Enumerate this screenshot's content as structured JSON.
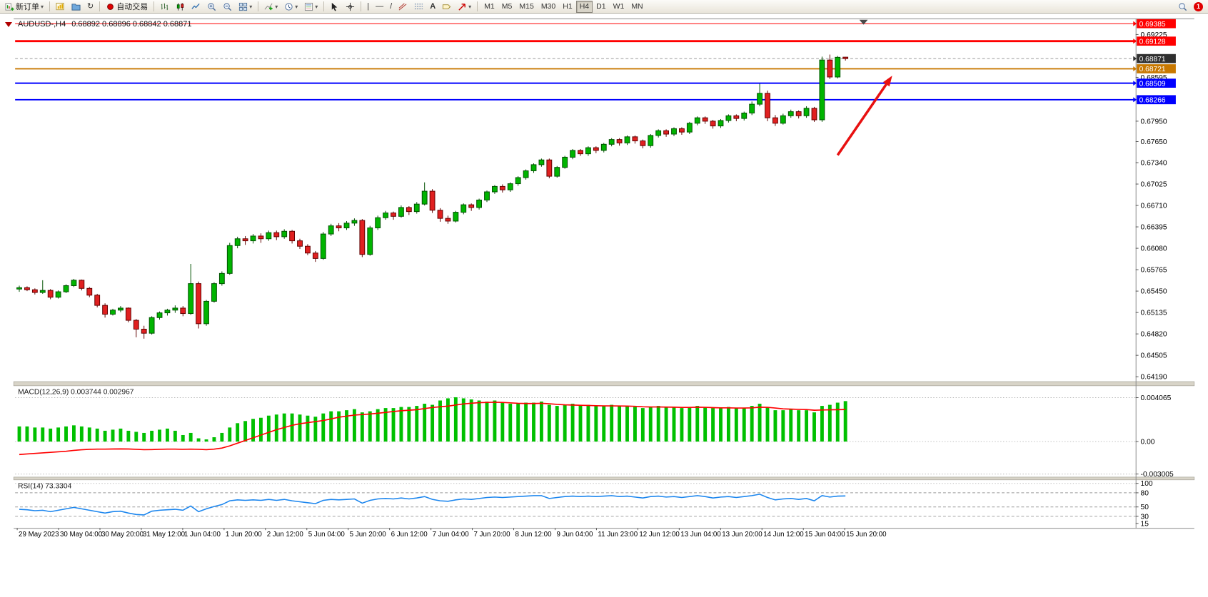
{
  "toolbar": {
    "new_order_label": "新订单",
    "autotrading_label": "自动交易",
    "timeframes": [
      "M1",
      "M5",
      "M15",
      "M30",
      "H1",
      "H4",
      "D1",
      "W1",
      "MN"
    ],
    "active_timeframe": "H4",
    "notification_count": "1"
  },
  "chart_header": {
    "symbol_tf": "AUDUSD-,H4",
    "ohlc": "0.68892 0.68896 0.68842 0.68871"
  },
  "colors": {
    "bull": "#00B400",
    "bull_border": "#005000",
    "bear": "#E02020",
    "bear_border": "#600000",
    "macd_hist": "#00C000",
    "macd_signal": "#FF0000",
    "rsi_line": "#1C86EE",
    "level_red": "#FF0000",
    "level_orange": "#C87800",
    "level_blue": "#0000FF",
    "current_price_badge": "#2F2F2F",
    "annotation": "#E81010"
  },
  "chart_data": [
    {
      "type": "candlestick",
      "symbol": "AUDUSD",
      "period": "H4",
      "ylim": [
        0.6419,
        0.69385
      ],
      "y_ticks": [
        "0.69225",
        "0.68595",
        "0.67950",
        "0.67650",
        "0.67340",
        "0.67025",
        "0.66710",
        "0.66395",
        "0.66080",
        "0.65765",
        "0.65450",
        "0.65135",
        "0.64820",
        "0.64505",
        "0.64190"
      ],
      "x_labels": [
        "29 May 2023",
        "30 May 04:00",
        "30 May 20:00",
        "31 May 12:00",
        "1 Jun 04:00",
        "1 Jun 20:00",
        "2 Jun 12:00",
        "5 Jun 04:00",
        "5 Jun 20:00",
        "6 Jun 12:00",
        "7 Jun 04:00",
        "7 Jun 20:00",
        "8 Jun 12:00",
        "9 Jun 04:00",
        "11 Jun 23:00",
        "12 Jun 12:00",
        "13 Jun 04:00",
        "13 Jun 20:00",
        "14 Jun 12:00",
        "15 Jun 04:00",
        "15 Jun 20:00"
      ],
      "levels": [
        {
          "price": 0.69385,
          "label": "0.69385",
          "color": "#FF0000",
          "width": 1
        },
        {
          "price": 0.69128,
          "label": "0.69128",
          "color": "#FF0000",
          "width": 3
        },
        {
          "price": 0.68721,
          "label": "0.68721",
          "color": "#C87800",
          "width": 2
        },
        {
          "price": 0.68509,
          "label": "0.68509",
          "color": "#0000FF",
          "width": 2
        },
        {
          "price": 0.68266,
          "label": "0.68266",
          "color": "#0000FF",
          "width": 2
        }
      ],
      "current_price": 0.68871,
      "current_price_label": "0.68871",
      "arrow": {
        "from_bar": 105,
        "from_price": 0.6745,
        "to_bar": 112,
        "to_price": 0.6862
      },
      "candles": [
        [
          0.6548,
          0.6553,
          0.6544,
          0.655
        ],
        [
          0.655,
          0.6552,
          0.6545,
          0.6547
        ],
        [
          0.6547,
          0.6549,
          0.654,
          0.6543
        ],
        [
          0.6543,
          0.6561,
          0.6541,
          0.6546
        ],
        [
          0.6546,
          0.6548,
          0.6533,
          0.6536
        ],
        [
          0.6536,
          0.6546,
          0.6534,
          0.6544
        ],
        [
          0.6544,
          0.6555,
          0.6542,
          0.6553
        ],
        [
          0.6553,
          0.6563,
          0.6551,
          0.6561
        ],
        [
          0.6561,
          0.6562,
          0.6546,
          0.6549
        ],
        [
          0.6549,
          0.6551,
          0.6536,
          0.6539
        ],
        [
          0.6539,
          0.6541,
          0.6521,
          0.6524
        ],
        [
          0.6524,
          0.6527,
          0.6506,
          0.6511
        ],
        [
          0.6511,
          0.6519,
          0.6509,
          0.6517
        ],
        [
          0.6517,
          0.6523,
          0.6514,
          0.652
        ],
        [
          0.652,
          0.6521,
          0.6499,
          0.6502
        ],
        [
          0.6502,
          0.6504,
          0.6477,
          0.6489
        ],
        [
          0.6489,
          0.6494,
          0.6475,
          0.6483
        ],
        [
          0.6483,
          0.6508,
          0.6481,
          0.6506
        ],
        [
          0.6506,
          0.6515,
          0.6503,
          0.6513
        ],
        [
          0.6513,
          0.6519,
          0.6509,
          0.6517
        ],
        [
          0.6517,
          0.6524,
          0.6513,
          0.652
        ],
        [
          0.652,
          0.6523,
          0.6508,
          0.6512
        ],
        [
          0.6512,
          0.6585,
          0.651,
          0.6556
        ],
        [
          0.6556,
          0.6559,
          0.649,
          0.6497
        ],
        [
          0.6497,
          0.6532,
          0.6494,
          0.653
        ],
        [
          0.653,
          0.6558,
          0.6528,
          0.6556
        ],
        [
          0.6556,
          0.6574,
          0.6553,
          0.6571
        ],
        [
          0.6571,
          0.6616,
          0.6569,
          0.6612
        ],
        [
          0.6612,
          0.6625,
          0.6608,
          0.6622
        ],
        [
          0.6622,
          0.6626,
          0.6613,
          0.6619
        ],
        [
          0.6619,
          0.6629,
          0.6615,
          0.6626
        ],
        [
          0.6626,
          0.663,
          0.6616,
          0.6622
        ],
        [
          0.6622,
          0.6634,
          0.6619,
          0.6631
        ],
        [
          0.6631,
          0.6634,
          0.662,
          0.6625
        ],
        [
          0.6625,
          0.6636,
          0.6622,
          0.6633
        ],
        [
          0.6633,
          0.6635,
          0.6615,
          0.6619
        ],
        [
          0.6619,
          0.6622,
          0.6607,
          0.6611
        ],
        [
          0.6611,
          0.6614,
          0.6598,
          0.6601
        ],
        [
          0.6601,
          0.6604,
          0.6588,
          0.6593
        ],
        [
          0.6593,
          0.6632,
          0.6591,
          0.6629
        ],
        [
          0.6629,
          0.6644,
          0.6626,
          0.6641
        ],
        [
          0.6641,
          0.6645,
          0.6633,
          0.6638
        ],
        [
          0.6638,
          0.6648,
          0.6635,
          0.6645
        ],
        [
          0.6645,
          0.6652,
          0.6641,
          0.6649
        ],
        [
          0.6649,
          0.6651,
          0.6595,
          0.6599
        ],
        [
          0.6599,
          0.6641,
          0.6597,
          0.6638
        ],
        [
          0.6638,
          0.6656,
          0.6635,
          0.6653
        ],
        [
          0.6653,
          0.6663,
          0.665,
          0.666
        ],
        [
          0.666,
          0.6662,
          0.665,
          0.6655
        ],
        [
          0.6655,
          0.6671,
          0.6653,
          0.6668
        ],
        [
          0.6668,
          0.667,
          0.6657,
          0.6662
        ],
        [
          0.6662,
          0.6676,
          0.6659,
          0.6673
        ],
        [
          0.6673,
          0.6705,
          0.6671,
          0.6692
        ],
        [
          0.6692,
          0.6695,
          0.666,
          0.6664
        ],
        [
          0.6664,
          0.6667,
          0.6647,
          0.6652
        ],
        [
          0.6652,
          0.6656,
          0.6644,
          0.6648
        ],
        [
          0.6648,
          0.6663,
          0.6646,
          0.6661
        ],
        [
          0.6661,
          0.6674,
          0.6658,
          0.6672
        ],
        [
          0.6672,
          0.6674,
          0.6663,
          0.6668
        ],
        [
          0.6668,
          0.6681,
          0.6665,
          0.6679
        ],
        [
          0.6679,
          0.6693,
          0.6676,
          0.6691
        ],
        [
          0.6691,
          0.6701,
          0.6688,
          0.6699
        ],
        [
          0.6699,
          0.6702,
          0.669,
          0.6694
        ],
        [
          0.6694,
          0.6705,
          0.6691,
          0.6703
        ],
        [
          0.6703,
          0.6714,
          0.67,
          0.6712
        ],
        [
          0.6712,
          0.6724,
          0.6709,
          0.6722
        ],
        [
          0.6722,
          0.6733,
          0.6719,
          0.6731
        ],
        [
          0.6731,
          0.674,
          0.6728,
          0.6738
        ],
        [
          0.6738,
          0.674,
          0.6711,
          0.6714
        ],
        [
          0.6714,
          0.6729,
          0.6712,
          0.6727
        ],
        [
          0.6727,
          0.6744,
          0.6725,
          0.6742
        ],
        [
          0.6742,
          0.6754,
          0.6739,
          0.6752
        ],
        [
          0.6752,
          0.6754,
          0.6744,
          0.6747
        ],
        [
          0.6747,
          0.6758,
          0.6744,
          0.6756
        ],
        [
          0.6756,
          0.6758,
          0.6748,
          0.6752
        ],
        [
          0.6752,
          0.6763,
          0.6749,
          0.6761
        ],
        [
          0.6761,
          0.677,
          0.6758,
          0.6768
        ],
        [
          0.6768,
          0.677,
          0.6759,
          0.6763
        ],
        [
          0.6763,
          0.6774,
          0.676,
          0.6772
        ],
        [
          0.6772,
          0.6774,
          0.6762,
          0.6766
        ],
        [
          0.6766,
          0.6768,
          0.6755,
          0.6759
        ],
        [
          0.6759,
          0.6776,
          0.6756,
          0.6774
        ],
        [
          0.6774,
          0.6783,
          0.6771,
          0.6781
        ],
        [
          0.6781,
          0.6783,
          0.6772,
          0.6776
        ],
        [
          0.6776,
          0.6786,
          0.6773,
          0.6784
        ],
        [
          0.6784,
          0.6786,
          0.6775,
          0.6779
        ],
        [
          0.6779,
          0.6794,
          0.6776,
          0.6792
        ],
        [
          0.6792,
          0.6802,
          0.6789,
          0.68
        ],
        [
          0.68,
          0.6802,
          0.6791,
          0.6795
        ],
        [
          0.6795,
          0.6797,
          0.6784,
          0.6788
        ],
        [
          0.6788,
          0.6798,
          0.6785,
          0.6796
        ],
        [
          0.6796,
          0.6805,
          0.6793,
          0.6803
        ],
        [
          0.6803,
          0.6805,
          0.6795,
          0.6799
        ],
        [
          0.6799,
          0.6809,
          0.6796,
          0.6807
        ],
        [
          0.6807,
          0.6824,
          0.6804,
          0.682
        ],
        [
          0.682,
          0.685,
          0.6817,
          0.6836
        ],
        [
          0.6836,
          0.684,
          0.6795,
          0.68
        ],
        [
          0.68,
          0.6804,
          0.6788,
          0.6792
        ],
        [
          0.6792,
          0.6806,
          0.679,
          0.6803
        ],
        [
          0.6803,
          0.6812,
          0.68,
          0.6809
        ],
        [
          0.6809,
          0.6811,
          0.6799,
          0.6803
        ],
        [
          0.6803,
          0.6817,
          0.68,
          0.6814
        ],
        [
          0.6814,
          0.6816,
          0.6794,
          0.6797
        ],
        [
          0.6797,
          0.689,
          0.6794,
          0.6885
        ],
        [
          0.6885,
          0.6893,
          0.6857,
          0.686
        ],
        [
          0.686,
          0.6891,
          0.6858,
          0.6889
        ],
        [
          0.68892,
          0.68896,
          0.68842,
          0.68871
        ]
      ]
    },
    {
      "type": "bar",
      "name": "MACD",
      "label": "MACD(12,26,9) 0.003744 0.002967",
      "current_values": [
        0.003744,
        0.002967
      ],
      "y_ticks": [
        "0.004065",
        "0.00",
        "-0.003005"
      ],
      "histogram": [
        0.0014,
        0.0014,
        0.0013,
        0.0013,
        0.0012,
        0.0013,
        0.0014,
        0.0015,
        0.0014,
        0.0013,
        0.0012,
        0.001,
        0.0011,
        0.0012,
        0.001,
        0.0009,
        0.0008,
        0.001,
        0.0011,
        0.0012,
        0.001,
        0.0006,
        0.0008,
        0.0003,
        0.0002,
        0.0004,
        0.0008,
        0.0013,
        0.0017,
        0.0019,
        0.0021,
        0.0022,
        0.0024,
        0.0025,
        0.0026,
        0.0026,
        0.0025,
        0.0024,
        0.0023,
        0.0026,
        0.0028,
        0.0028,
        0.0029,
        0.003,
        0.0027,
        0.0028,
        0.003,
        0.0031,
        0.0031,
        0.0032,
        0.0032,
        0.0033,
        0.0035,
        0.0034,
        0.0038,
        0.004,
        0.0041,
        0.004,
        0.0039,
        0.0038,
        0.0037,
        0.0038,
        0.0036,
        0.0035,
        0.0035,
        0.0036,
        0.0036,
        0.0037,
        0.0034,
        0.0033,
        0.0034,
        0.0035,
        0.0034,
        0.0034,
        0.0033,
        0.0033,
        0.0034,
        0.0033,
        0.0033,
        0.0032,
        0.0031,
        0.0032,
        0.0033,
        0.0032,
        0.0032,
        0.0031,
        0.0032,
        0.0033,
        0.0032,
        0.0031,
        0.0031,
        0.0032,
        0.0031,
        0.0031,
        0.0033,
        0.0035,
        0.0032,
        0.0029,
        0.0029,
        0.003,
        0.0029,
        0.0029,
        0.0027,
        0.0033,
        0.0034,
        0.0036,
        0.003744
      ],
      "signal": [
        -0.0012,
        -0.00115,
        -0.0011,
        -0.00105,
        -0.001,
        -0.00095,
        -0.0009,
        -0.00082,
        -0.00076,
        -0.00072,
        -0.0007,
        -0.0007,
        -0.00069,
        -0.00068,
        -0.00069,
        -0.00072,
        -0.00075,
        -0.00074,
        -0.00072,
        -0.0007,
        -0.0007,
        -0.00072,
        -0.0007,
        -0.00072,
        -0.00075,
        -0.0007,
        -0.0006,
        -0.0004,
        -0.00015,
        0.0001,
        0.00035,
        0.0006,
        0.00085,
        0.0011,
        0.0013,
        0.0015,
        0.00165,
        0.00175,
        0.00185,
        0.00195,
        0.0021,
        0.00225,
        0.00235,
        0.00245,
        0.0025,
        0.00255,
        0.00262,
        0.0027,
        0.00278,
        0.00285,
        0.0029,
        0.00295,
        0.00305,
        0.00315,
        0.00322,
        0.00328,
        0.00338,
        0.00348,
        0.00355,
        0.0036,
        0.00362,
        0.00364,
        0.00362,
        0.00358,
        0.00354,
        0.00352,
        0.00352,
        0.00354,
        0.0035,
        0.00344,
        0.0034,
        0.00338,
        0.00336,
        0.00334,
        0.00332,
        0.0033,
        0.0033,
        0.00329,
        0.00328,
        0.00326,
        0.00322,
        0.0032,
        0.0032,
        0.00319,
        0.00318,
        0.00316,
        0.00316,
        0.00318,
        0.00317,
        0.00314,
        0.00312,
        0.00312,
        0.0031,
        0.0031,
        0.00312,
        0.00318,
        0.00317,
        0.0031,
        0.00303,
        0.003,
        0.00298,
        0.00296,
        0.0029,
        0.00292,
        0.00294,
        0.00295,
        0.002967
      ]
    },
    {
      "type": "line",
      "name": "RSI",
      "label": "RSI(14) 73.3304",
      "current_value": 73.3304,
      "y_ticks": [
        100,
        80,
        50,
        30,
        15
      ],
      "levels": [
        80,
        50,
        30
      ],
      "values": [
        45,
        44,
        42,
        43,
        40,
        43,
        46,
        49,
        46,
        43,
        40,
        37,
        40,
        41,
        37,
        34,
        33,
        41,
        43,
        44,
        45,
        43,
        52,
        40,
        46,
        51,
        55,
        63,
        65,
        64,
        65,
        64,
        66,
        64,
        66,
        63,
        61,
        59,
        57,
        64,
        66,
        65,
        66,
        67,
        58,
        64,
        67,
        68,
        67,
        69,
        67,
        69,
        72,
        66,
        63,
        62,
        65,
        67,
        66,
        68,
        70,
        71,
        70,
        71,
        72,
        73,
        74,
        74,
        68,
        70,
        72,
        73,
        72,
        73,
        72,
        73,
        74,
        72,
        73,
        71,
        69,
        72,
        73,
        71,
        72,
        70,
        72,
        74,
        72,
        69,
        71,
        72,
        70,
        72,
        74,
        77,
        70,
        65,
        67,
        68,
        66,
        68,
        63,
        74,
        71,
        73,
        73.33
      ]
    }
  ]
}
